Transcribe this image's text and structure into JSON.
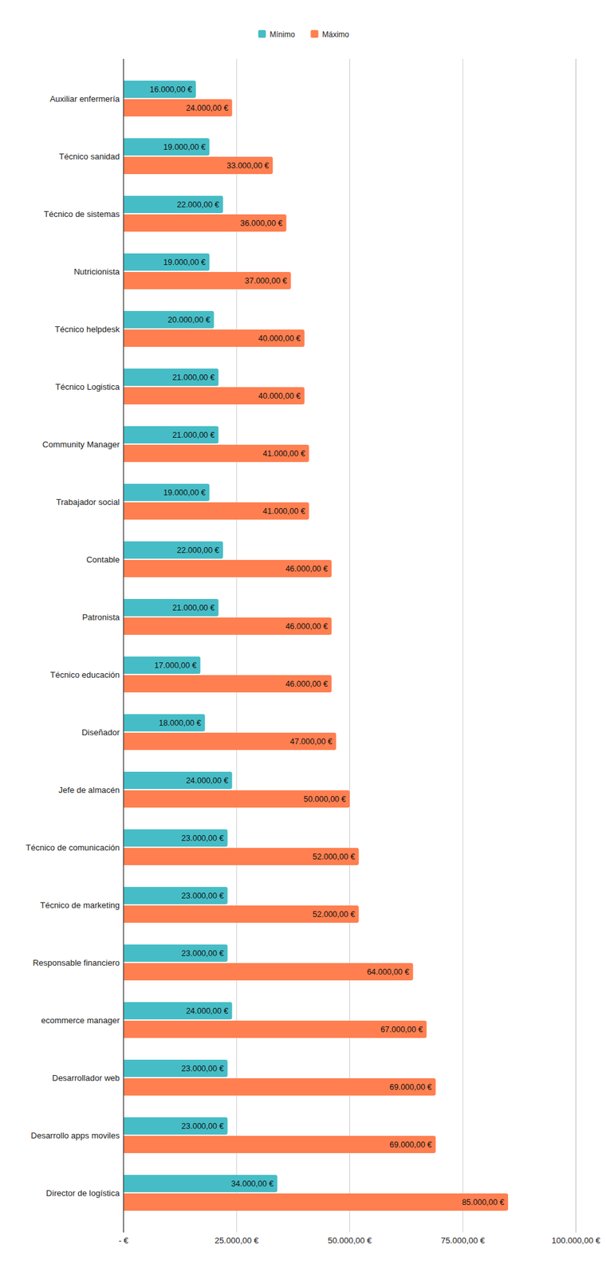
{
  "chart_data": {
    "type": "bar",
    "orientation": "horizontal",
    "data_labels": true,
    "grid": true,
    "legend": "top",
    "categories": [
      "Auxiliar enfermería",
      "Técnico sanidad",
      "Técnico de sistemas",
      "Nutricionista",
      "Técnico helpdesk",
      "Técnico Logistica",
      "Community Manager",
      "Trabajador social",
      "Contable",
      "Patronista",
      "Técnico educación",
      "Diseñador",
      "Jefe de almacén",
      "Técnico de comunicación",
      "Técnico de marketing",
      "Responsable financiero",
      "ecommerce manager",
      "Desarrollador web",
      "Desarrollo apps moviles",
      "Director de logística"
    ],
    "series": [
      {
        "name": "Mínimo",
        "color": "#46bdc6",
        "values": [
          16000,
          19000,
          22000,
          19000,
          20000,
          21000,
          21000,
          19000,
          22000,
          21000,
          17000,
          18000,
          24000,
          23000,
          23000,
          23000,
          24000,
          23000,
          23000,
          34000
        ],
        "value_labels": [
          "16.000,00 €",
          "19.000,00 €",
          "22.000,00 €",
          "19.000,00 €",
          "20.000,00 €",
          "21.000,00 €",
          "21.000,00 €",
          "19.000,00 €",
          "22.000,00 €",
          "21.000,00 €",
          "17.000,00 €",
          "18.000,00 €",
          "24.000,00 €",
          "23.000,00 €",
          "23.000,00 €",
          "23.000,00 €",
          "24.000,00 €",
          "23.000,00 €",
          "23.000,00 €",
          "34.000,00 €"
        ]
      },
      {
        "name": "Máximo",
        "color": "#ff7f50",
        "values": [
          24000,
          33000,
          36000,
          37000,
          40000,
          40000,
          41000,
          41000,
          46000,
          46000,
          46000,
          47000,
          50000,
          52000,
          52000,
          64000,
          67000,
          69000,
          69000,
          85000
        ],
        "value_labels": [
          "24.000,00 €",
          "33.000,00 €",
          "36.000,00 €",
          "37.000,00 €",
          "40.000,00 €",
          "40.000,00 €",
          "41.000,00 €",
          "41.000,00 €",
          "46.000,00 €",
          "46.000,00 €",
          "46.000,00 €",
          "47.000,00 €",
          "50.000,00 €",
          "52.000,00 €",
          "52.000,00 €",
          "64.000,00 €",
          "67.000,00 €",
          "69.000,00 €",
          "69.000,00 €",
          "85.000,00 €"
        ]
      }
    ],
    "xlim": [
      0,
      100000
    ],
    "xticks": [
      {
        "value": 0,
        "label": "-  €"
      },
      {
        "value": 25000,
        "label": "25.000,00 €"
      },
      {
        "value": 50000,
        "label": "50.000,00 €"
      },
      {
        "value": 75000,
        "label": "75.000,00 €"
      },
      {
        "value": 100000,
        "label": "100.000,00 €"
      }
    ]
  }
}
